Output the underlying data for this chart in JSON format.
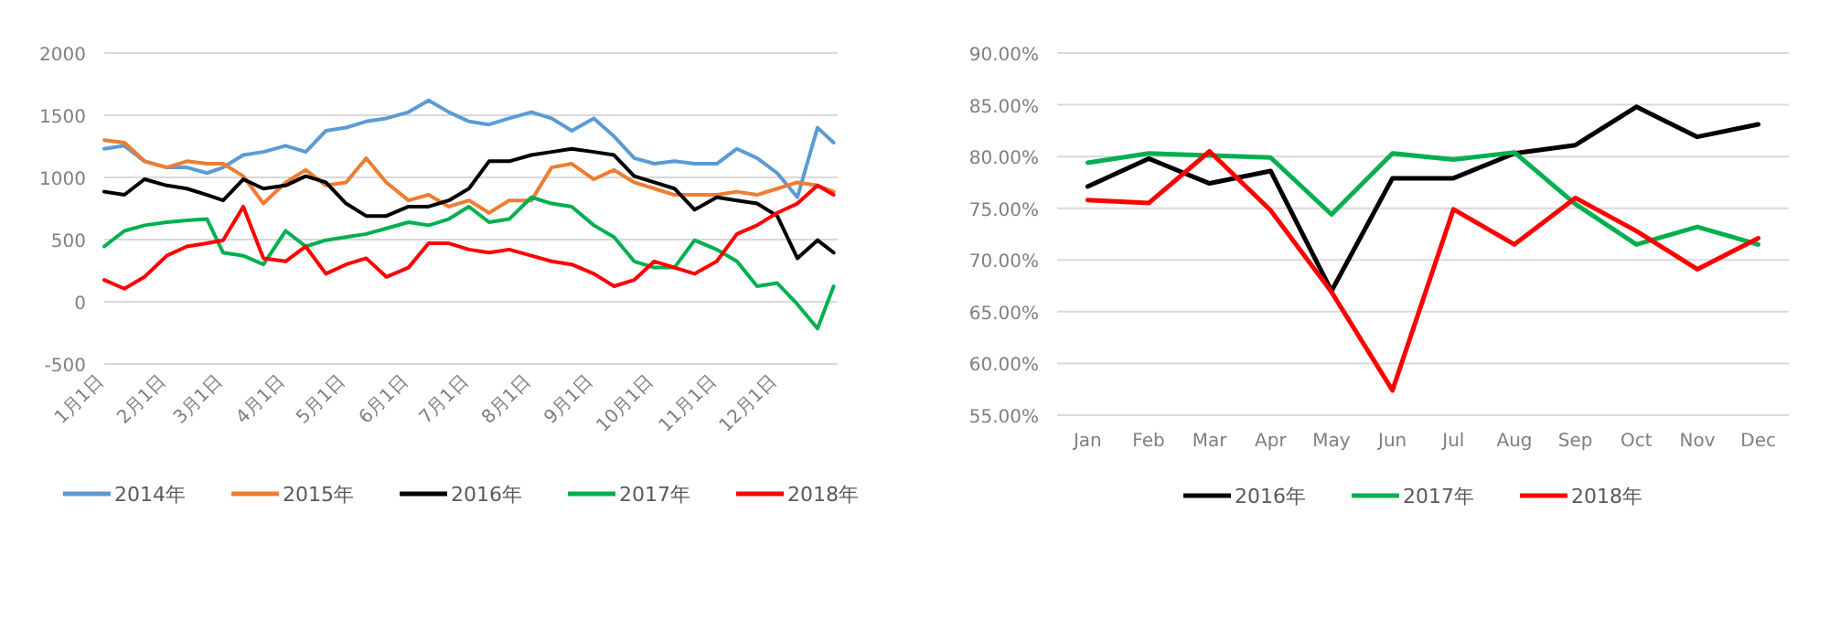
{
  "chart_data": [
    {
      "type": "line",
      "x": [
        "--01-01",
        "--01-11",
        "--01-21",
        "--02-01",
        "--02-11",
        "--02-21",
        "--03-01",
        "--03-11",
        "--03-21",
        "--04-01",
        "--04-11",
        "--04-21",
        "--05-01",
        "--05-11",
        "--05-21",
        "--06-01",
        "--06-11",
        "--06-21",
        "--07-01",
        "--07-11",
        "--07-21",
        "--08-01",
        "--08-11",
        "--08-21",
        "--09-01",
        "--09-11",
        "--09-21",
        "--10-01",
        "--10-11",
        "--10-21",
        "--11-01",
        "--11-11",
        "--11-21",
        "--12-01",
        "--12-11",
        "--12-21",
        "--12-29"
      ],
      "xlim": [
        "--01-01",
        "--12-31"
      ],
      "xticks": [
        {
          "value": "--01-01",
          "label": "1月1日"
        },
        {
          "value": "--02-01",
          "label": "2月1日"
        },
        {
          "value": "--03-01",
          "label": "3月1日"
        },
        {
          "value": "--04-01",
          "label": "4月1日"
        },
        {
          "value": "--05-01",
          "label": "5月1日"
        },
        {
          "value": "--06-01",
          "label": "6月1日"
        },
        {
          "value": "--07-01",
          "label": "7月1日"
        },
        {
          "value": "--08-01",
          "label": "8月1日"
        },
        {
          "value": "--09-01",
          "label": "9月1日"
        },
        {
          "value": "--10-01",
          "label": "10月1日"
        },
        {
          "value": "--11-01",
          "label": "11月1日"
        },
        {
          "value": "--12-01",
          "label": "12月1日"
        }
      ],
      "ylim": [
        -500,
        2000
      ],
      "yticks": [
        -500,
        0,
        500,
        1000,
        1500,
        2000
      ],
      "grid": "y",
      "legend": "bottom",
      "series": [
        {
          "name": "2014年",
          "color": "#5b9bd5",
          "values": [
            1230,
            1255,
            1130,
            1080,
            1080,
            1035,
            1080,
            1180,
            1205,
            1255,
            1205,
            1375,
            1400,
            1450,
            1475,
            1525,
            1620,
            1525,
            1450,
            1425,
            1475,
            1525,
            1475,
            1375,
            1475,
            1330,
            1155,
            1110,
            1130,
            1110,
            1110,
            1230,
            1155,
            1035,
            840,
            1400,
            1280
          ]
        },
        {
          "name": "2015年",
          "color": "#ed7d31",
          "values": [
            1300,
            1280,
            1130,
            1080,
            1130,
            1110,
            1110,
            1010,
            790,
            960,
            1060,
            935,
            960,
            1155,
            960,
            815,
            860,
            765,
            815,
            715,
            815,
            815,
            1080,
            1110,
            985,
            1060,
            960,
            910,
            860,
            860,
            860,
            885,
            860,
            910,
            960,
            935,
            885
          ]
        },
        {
          "name": "2016年",
          "color": "#000000",
          "values": [
            885,
            860,
            985,
            935,
            910,
            860,
            815,
            985,
            910,
            935,
            1010,
            960,
            790,
            690,
            690,
            765,
            765,
            815,
            910,
            1130,
            1130,
            1180,
            1205,
            1230,
            1205,
            1180,
            1010,
            960,
            910,
            740,
            840,
            815,
            790,
            690,
            350,
            495,
            395
          ]
        },
        {
          "name": "2017年",
          "color": "#00b050",
          "values": [
            445,
            570,
            615,
            640,
            655,
            665,
            395,
            370,
            300,
            570,
            445,
            495,
            520,
            545,
            590,
            640,
            615,
            665,
            765,
            640,
            665,
            840,
            790,
            765,
            615,
            520,
            325,
            275,
            275,
            495,
            420,
            325,
            125,
            150,
            -20,
            -215,
            125
          ]
        },
        {
          "name": "2018年",
          "color": "#ff0000",
          "values": [
            175,
            105,
            200,
            370,
            445,
            470,
            495,
            765,
            350,
            325,
            445,
            225,
            300,
            350,
            200,
            275,
            470,
            470,
            420,
            395,
            420,
            370,
            325,
            300,
            225,
            125,
            175,
            325,
            275,
            225,
            325,
            545,
            615,
            715,
            790,
            935,
            860
          ]
        }
      ]
    },
    {
      "type": "line",
      "categories": [
        "Jan",
        "Feb",
        "Mar",
        "Apr",
        "May",
        "Jun",
        "Jul",
        "Aug",
        "Sep",
        "Oct",
        "Nov",
        "Dec"
      ],
      "ylim": [
        55,
        90
      ],
      "yticks": [
        {
          "value": 55,
          "label": "55.00%"
        },
        {
          "value": 60,
          "label": "60.00%"
        },
        {
          "value": 65,
          "label": "65.00%"
        },
        {
          "value": 70,
          "label": "70.00%"
        },
        {
          "value": 75,
          "label": "75.00%"
        },
        {
          "value": 80,
          "label": "80.00%"
        },
        {
          "value": 85,
          "label": "85.00%"
        },
        {
          "value": 90,
          "label": "90.00%"
        }
      ],
      "grid": "y",
      "legend": "bottom",
      "series": [
        {
          "name": "2016年",
          "color": "#000000",
          "values": [
            77.1,
            79.8,
            77.4,
            78.6,
            67.0,
            77.9,
            77.9,
            80.3,
            81.1,
            84.8,
            81.9,
            83.1
          ]
        },
        {
          "name": "2017年",
          "color": "#00b050",
          "values": [
            79.4,
            80.3,
            80.1,
            79.9,
            74.4,
            80.3,
            79.7,
            80.4,
            75.4,
            71.5,
            73.2,
            71.5
          ]
        },
        {
          "name": "2018年",
          "color": "#ff0000",
          "values": [
            75.8,
            75.5,
            80.5,
            74.8,
            66.9,
            57.4,
            74.9,
            71.5,
            76.0,
            72.8,
            69.1,
            72.1
          ]
        }
      ]
    }
  ]
}
